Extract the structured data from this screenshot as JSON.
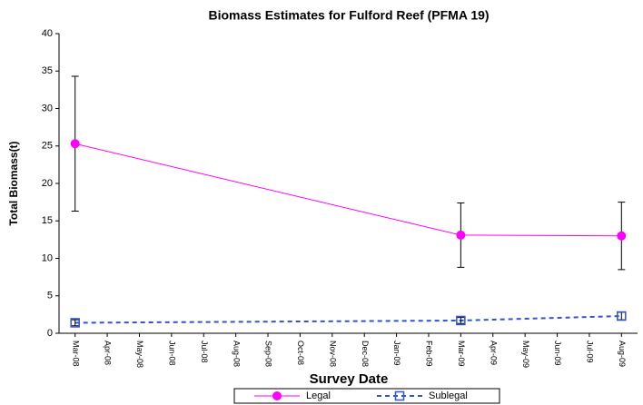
{
  "chart_data": {
    "type": "line",
    "title": "Biomass Estimates for Fulford Reef (PFMA 19)",
    "x_label": "Survey Date",
    "y_label": "Total Biomass(t)",
    "categories": [
      "Mar-08",
      "Apr-08",
      "May-08",
      "Jun-08",
      "Jul-08",
      "Aug-08",
      "Sep-08",
      "Oct-08",
      "Nov-08",
      "Dec-08",
      "Jan-09",
      "Feb-09",
      "Mar-09",
      "Apr-09",
      "May-09",
      "Jun-09",
      "Jul-09",
      "Aug-09"
    ],
    "series": [
      {
        "name": "Legal",
        "color": "#ff00ff",
        "dashed": false,
        "marker": "circle",
        "x": [
          "Mar-08",
          "Mar-09",
          "Aug-09"
        ],
        "values": [
          25.3,
          13.1,
          13.0
        ],
        "errors": [
          9.0,
          4.3,
          4.5
        ]
      },
      {
        "name": "Sublegal",
        "color": "#3355cc",
        "dashed": true,
        "marker": "square",
        "x": [
          "Mar-08",
          "Mar-09",
          "Aug-09"
        ],
        "values": [
          1.4,
          1.7,
          2.3
        ],
        "errors": [
          0.4,
          0.4,
          0.5
        ]
      }
    ],
    "ylim": [
      0,
      40
    ],
    "yticks": [
      0,
      5,
      10,
      15,
      20,
      25,
      30,
      35,
      40
    ],
    "grid": false,
    "legend": "bottom"
  }
}
